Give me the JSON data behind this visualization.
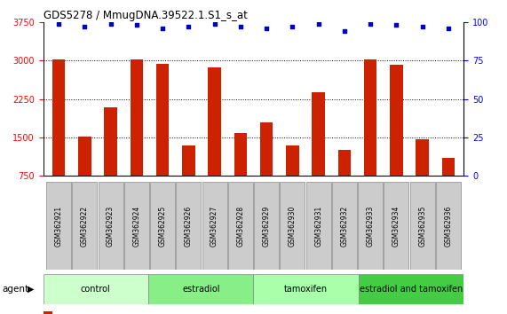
{
  "title": "GDS5278 / MmugDNA.39522.1.S1_s_at",
  "samples": [
    "GSM362921",
    "GSM362922",
    "GSM362923",
    "GSM362924",
    "GSM362925",
    "GSM362926",
    "GSM362927",
    "GSM362928",
    "GSM362929",
    "GSM362930",
    "GSM362931",
    "GSM362932",
    "GSM362933",
    "GSM362934",
    "GSM362935",
    "GSM362936"
  ],
  "counts": [
    3020,
    1520,
    2080,
    3020,
    2930,
    1340,
    2860,
    1590,
    1790,
    1340,
    2380,
    1250,
    3020,
    2920,
    1470,
    1100
  ],
  "percentiles": [
    99,
    97,
    99,
    98,
    96,
    97,
    99,
    97,
    96,
    97,
    99,
    94,
    99,
    98,
    97,
    96
  ],
  "bar_color": "#cc2200",
  "dot_color": "#0000cc",
  "groups": [
    {
      "label": "control",
      "start": 0,
      "end": 4,
      "color": "#ccffcc"
    },
    {
      "label": "estradiol",
      "start": 4,
      "end": 8,
      "color": "#88ee88"
    },
    {
      "label": "tamoxifen",
      "start": 8,
      "end": 12,
      "color": "#aaffaa"
    },
    {
      "label": "estradiol and tamoxifen",
      "start": 12,
      "end": 16,
      "color": "#44cc44"
    }
  ],
  "agent_label": "agent",
  "ylim_left": [
    750,
    3750
  ],
  "ylim_right": [
    0,
    100
  ],
  "yticks_left": [
    750,
    1500,
    2250,
    3000,
    3750
  ],
  "yticks_right": [
    0,
    25,
    50,
    75,
    100
  ],
  "grid_yticks": [
    1500,
    2250,
    3000
  ],
  "bar_color_left": "red",
  "bar_color_right": "blue",
  "bar_width": 0.5
}
